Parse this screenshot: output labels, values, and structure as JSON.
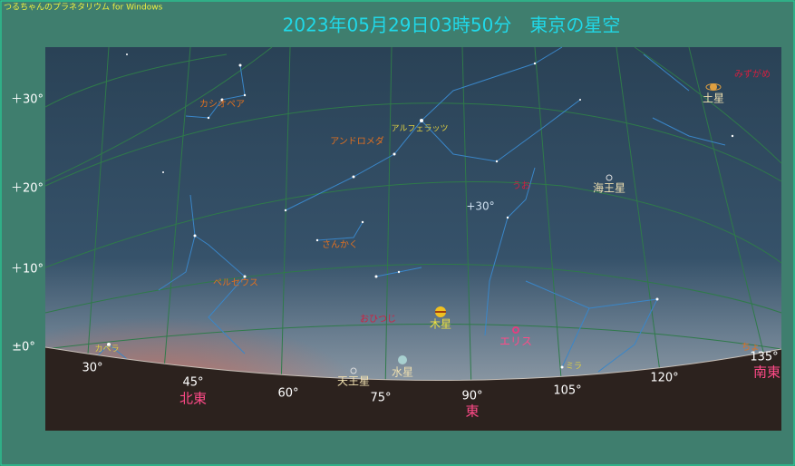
{
  "header": {
    "app_title": "つるちゃんのプラネタリウム for Windows",
    "title": "2023年05月29日03時50分　東京の星空"
  },
  "altitude_labels": [
    "＋30°",
    "＋20°",
    "＋10°",
    "±0°"
  ],
  "azimuth_labels": [
    "30°",
    "45°",
    "60°",
    "75°",
    "90°",
    "105°",
    "120°",
    "135°"
  ],
  "directions": [
    "北東",
    "東",
    "南東"
  ],
  "constellations": [
    "カシオペア",
    "アンドロメダ",
    "さんかく",
    "ペルセウス",
    "おひつじ",
    "うお",
    "みずがめ",
    "ちょ"
  ],
  "stars": [
    "アルフェラッツ",
    "カペラ",
    "ミラ"
  ],
  "planets": [
    "土星",
    "海王星",
    "木星",
    "天王星",
    "水星",
    "エリス"
  ],
  "sky_marker": "+30°"
}
